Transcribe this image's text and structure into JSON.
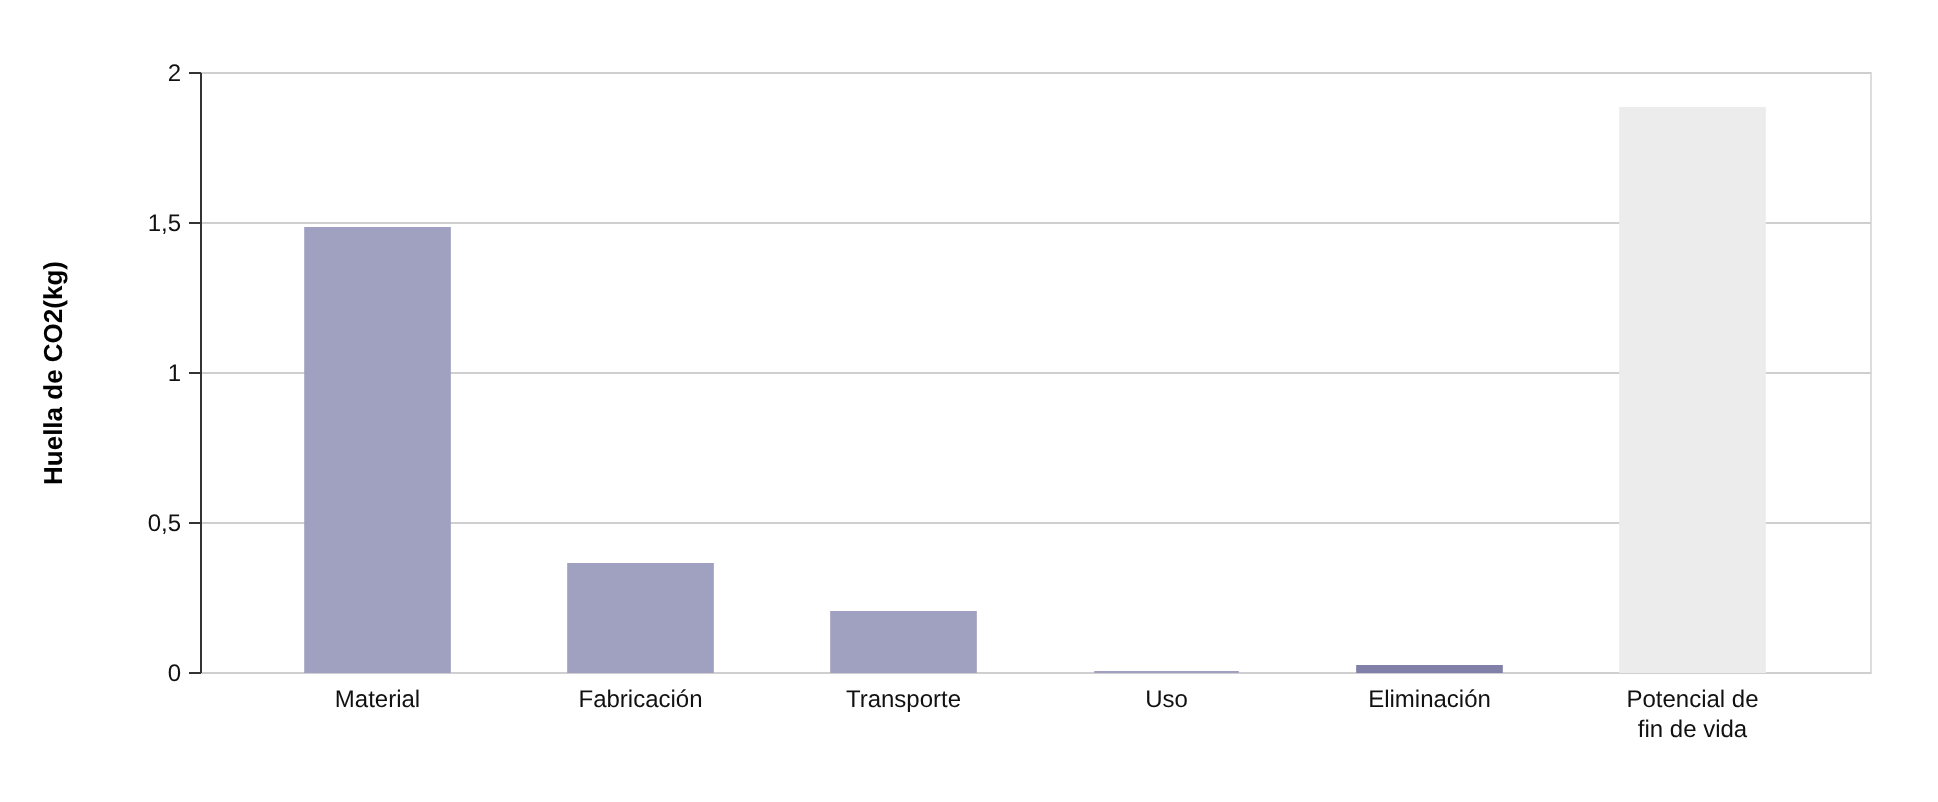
{
  "chart_data": {
    "type": "bar",
    "ylabel": "Huella de CO2(kg)",
    "categories": [
      "Material",
      "Fabricación",
      "Transporte",
      "Uso",
      "Eliminación",
      "Potencial de fin de vida"
    ],
    "values": [
      1.48,
      0.36,
      0.2,
      0,
      0.02,
      1.88
    ],
    "colors": [
      "#a0a0c0",
      "#a0a0c0",
      "#a0a0c0",
      "#a0a0c0",
      "#8080a8",
      "#ececec"
    ],
    "ylim": [
      0,
      2
    ],
    "yticks": [
      0,
      {
        "value": 0.5,
        "label": "0,5"
      },
      1,
      {
        "value": 1.5,
        "label": "1,5"
      },
      2
    ],
    "grid": "y"
  }
}
